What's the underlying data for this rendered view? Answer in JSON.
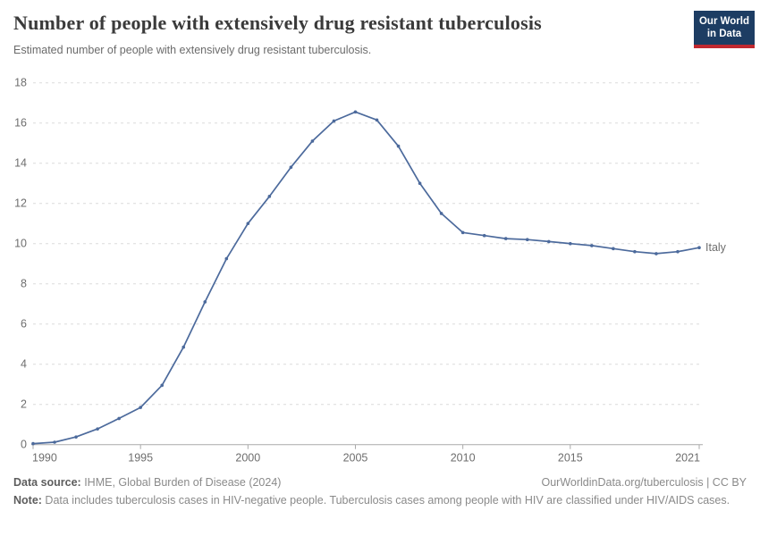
{
  "header": {
    "title": "Number of people with extensively drug resistant tuberculosis",
    "subtitle": "Estimated number of people with extensively drug resistant tuberculosis.",
    "logo": {
      "line1": "Our World",
      "line2": "in Data",
      "bg_color": "#1d3d63",
      "accent_color": "#c0282f"
    }
  },
  "chart_data": {
    "type": "line",
    "title": "Number of people with extensively drug resistant tuberculosis",
    "subtitle": "Estimated number of people with extensively drug resistant tuberculosis.",
    "xlabel": "",
    "ylabel": "",
    "xlim": [
      1990,
      2021
    ],
    "ylim": [
      0,
      18
    ],
    "xticks": [
      1990,
      1995,
      2000,
      2005,
      2010,
      2015,
      2021
    ],
    "yticks": [
      0,
      2,
      4,
      6,
      8,
      10,
      12,
      14,
      16,
      18
    ],
    "grid": "horizontal-dashed",
    "legend_position": "end-of-line",
    "line_color": "#4C6A9C",
    "grid_color": "#dcdcdc",
    "axis_color": "#a9a9a9",
    "tick_label_color": "#6e6e6e",
    "series": [
      {
        "name": "Italy",
        "x": [
          1990,
          1991,
          1992,
          1993,
          1994,
          1995,
          1996,
          1997,
          1998,
          1999,
          2000,
          2001,
          2002,
          2003,
          2004,
          2005,
          2006,
          2007,
          2008,
          2009,
          2010,
          2011,
          2012,
          2013,
          2014,
          2015,
          2016,
          2017,
          2018,
          2019,
          2020,
          2021
        ],
        "values": [
          0.05,
          0.12,
          0.38,
          0.78,
          1.3,
          1.85,
          2.95,
          4.85,
          7.1,
          9.25,
          11.0,
          12.35,
          13.8,
          15.1,
          16.1,
          16.55,
          16.15,
          14.85,
          13.0,
          11.5,
          10.55,
          10.4,
          10.25,
          10.2,
          10.1,
          10.0,
          9.9,
          9.75,
          9.6,
          9.5,
          9.6,
          9.8
        ]
      }
    ]
  },
  "footer": {
    "source_label": "Data source:",
    "source_text": " IHME, Global Burden of Disease (2024)",
    "rights": "OurWorldinData.org/tuberculosis | CC BY",
    "note_label": "Note:",
    "note_text": " Data includes tuberculosis cases in HIV-negative people. Tuberculosis cases among people with HIV are classified under HIV/AIDS cases."
  }
}
